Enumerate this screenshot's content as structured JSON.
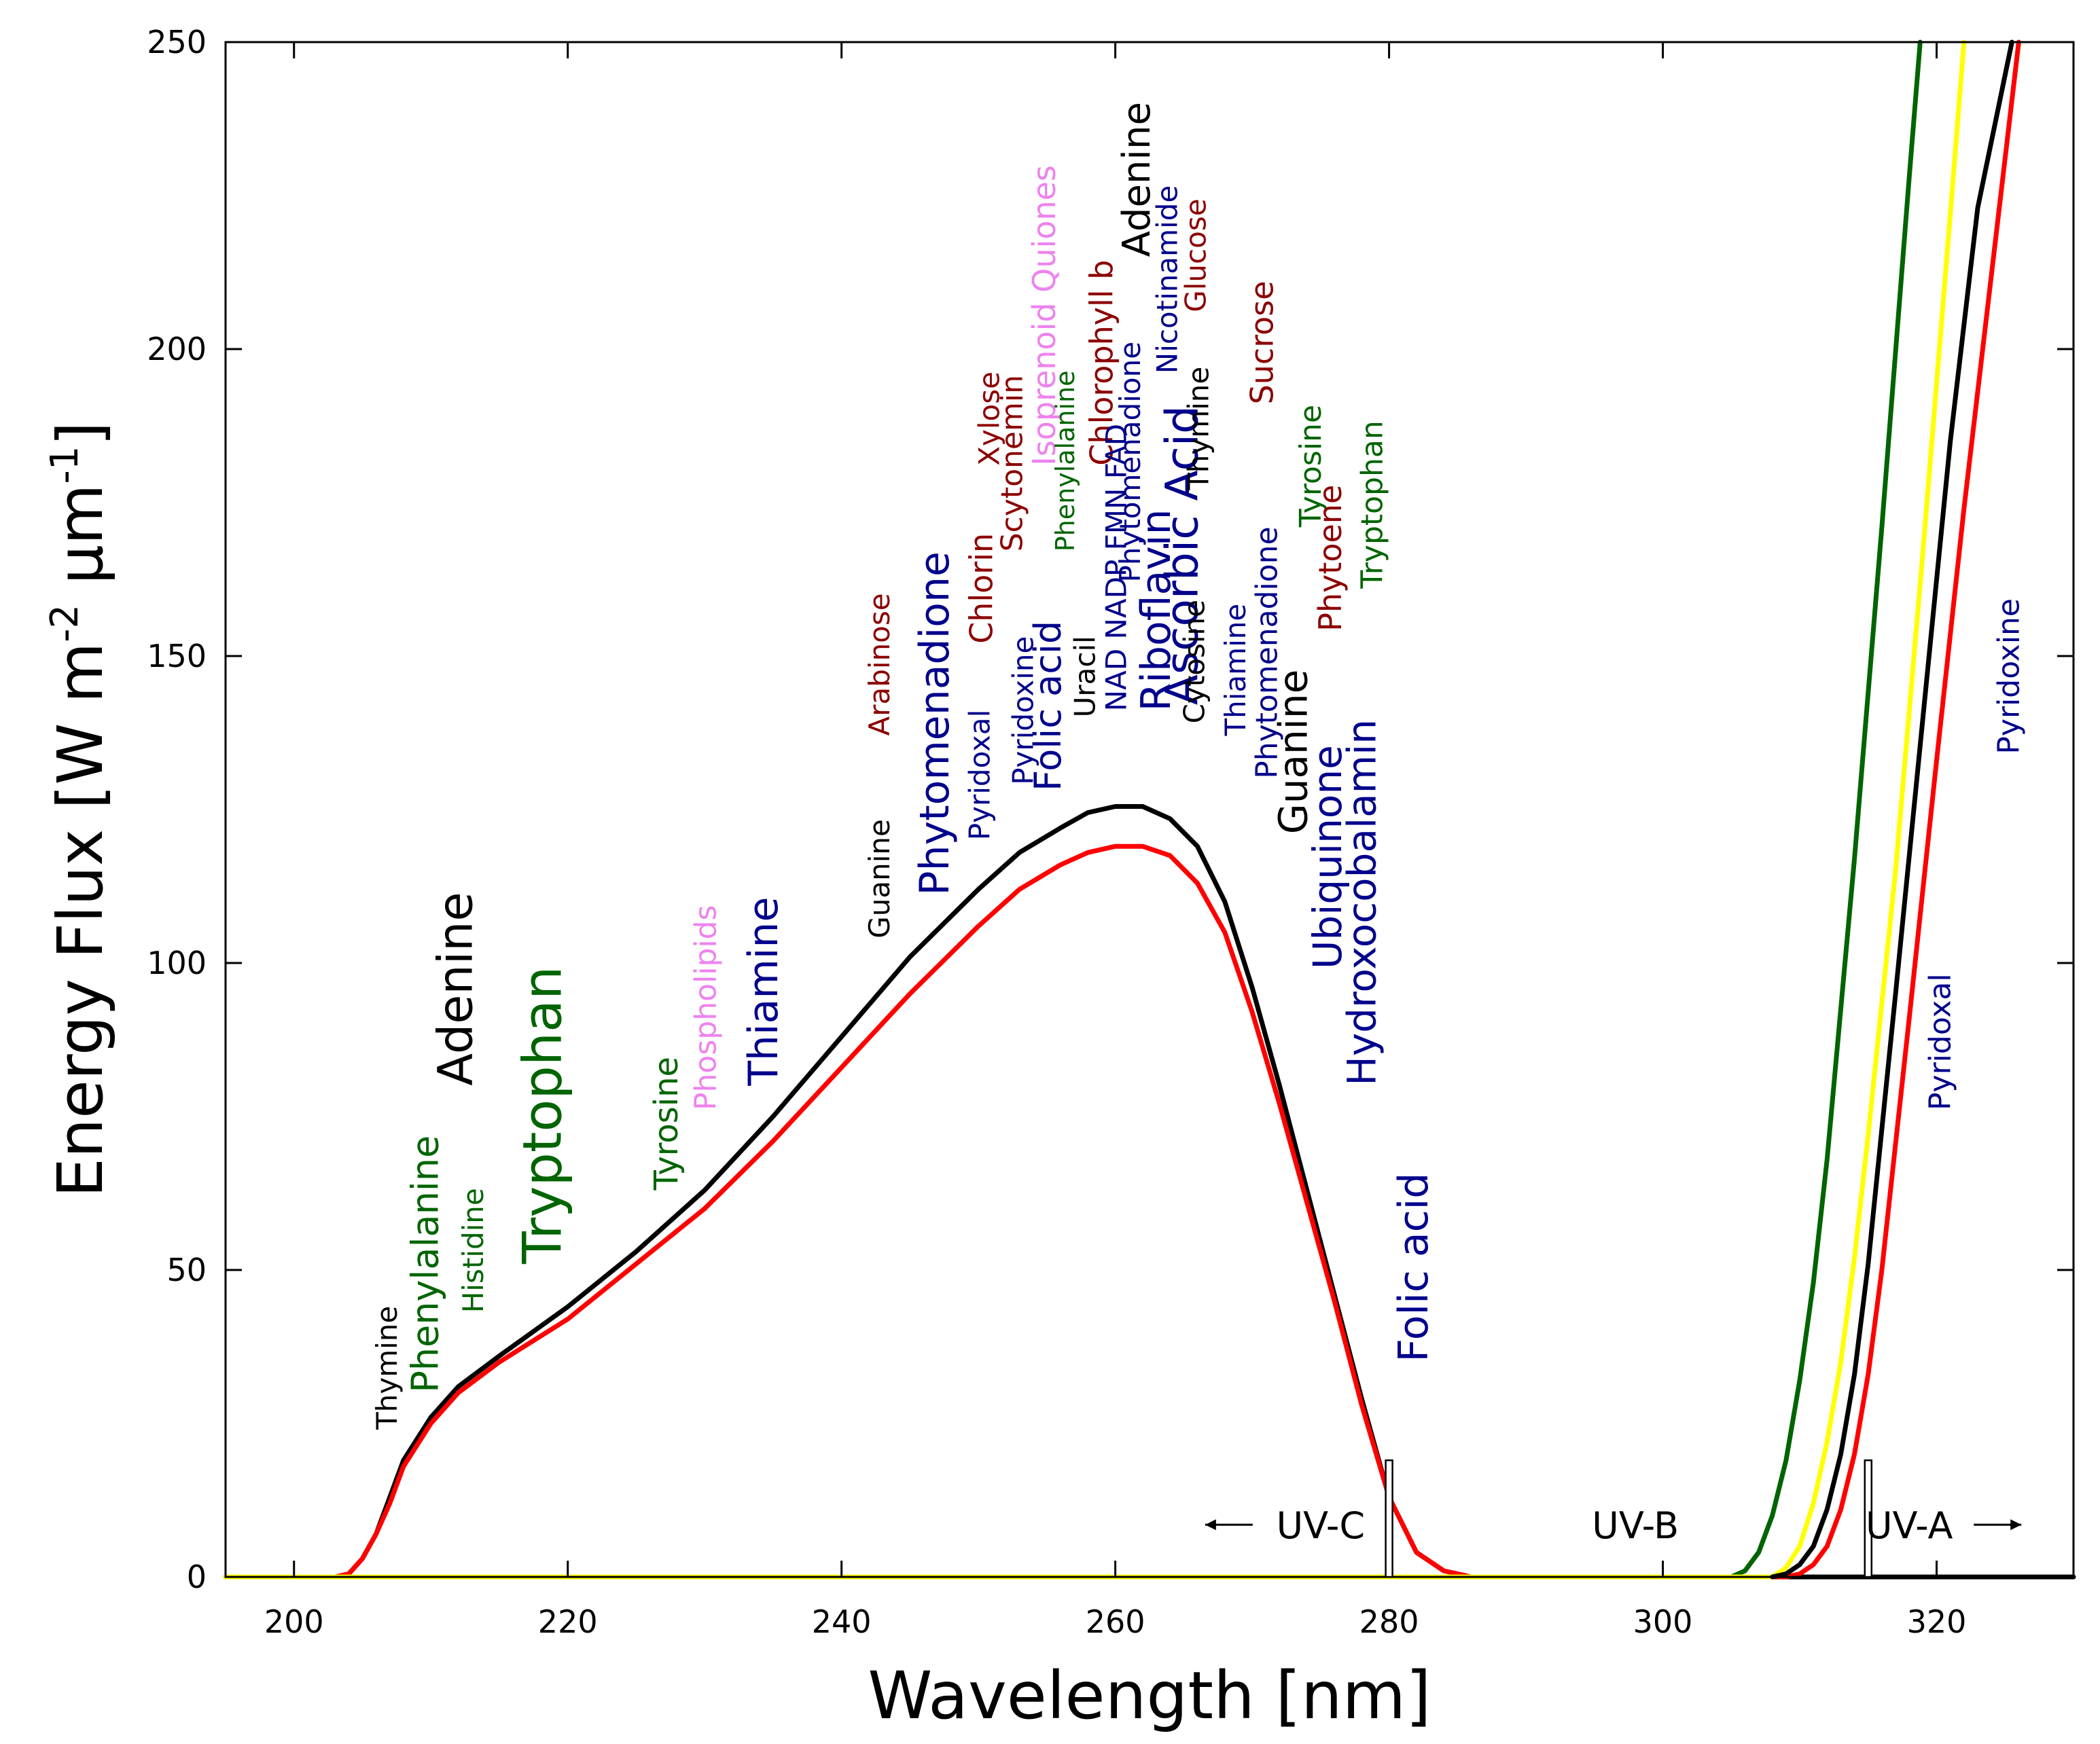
{
  "chart_data": {
    "type": "line",
    "title": "",
    "xlabel": "Wavelength [nm]",
    "ylabel_parts": [
      "Energy Flux [W m",
      "-2",
      " μm",
      "-1",
      "]"
    ],
    "xlim": [
      195,
      330
    ],
    "ylim": [
      0,
      250
    ],
    "x_ticks": [
      200,
      220,
      240,
      260,
      280,
      300,
      320
    ],
    "y_ticks": [
      0,
      50,
      100,
      150,
      200,
      250
    ],
    "grid": false,
    "series": [
      {
        "color": "#000000",
        "points": [
          [
            195,
            0
          ],
          [
            203,
            0
          ],
          [
            204,
            0.5
          ],
          [
            205,
            3
          ],
          [
            206,
            7
          ],
          [
            207,
            13
          ],
          [
            208,
            19
          ],
          [
            210,
            26
          ],
          [
            212,
            31
          ],
          [
            215,
            36
          ],
          [
            220,
            44
          ],
          [
            225,
            53
          ],
          [
            230,
            63
          ],
          [
            235,
            75
          ],
          [
            240,
            88
          ],
          [
            245,
            101
          ],
          [
            250,
            112
          ],
          [
            253,
            118
          ],
          [
            256,
            122
          ],
          [
            258,
            124.5
          ],
          [
            260,
            125.5
          ],
          [
            262,
            125.5
          ],
          [
            264,
            123.5
          ],
          [
            266,
            119
          ],
          [
            268,
            110
          ],
          [
            270,
            96
          ],
          [
            272,
            80
          ],
          [
            274,
            63
          ],
          [
            276,
            46
          ],
          [
            278,
            29
          ],
          [
            280,
            13
          ],
          [
            282,
            4
          ],
          [
            284,
            1
          ],
          [
            286,
            0
          ],
          [
            330,
            0
          ]
        ]
      },
      {
        "color": "#ff0000",
        "points": [
          [
            195,
            0
          ],
          [
            203,
            0
          ],
          [
            204,
            0.5
          ],
          [
            205,
            3
          ],
          [
            206,
            7
          ],
          [
            207,
            12
          ],
          [
            208,
            18
          ],
          [
            210,
            25
          ],
          [
            212,
            30
          ],
          [
            215,
            35
          ],
          [
            220,
            42
          ],
          [
            225,
            51
          ],
          [
            230,
            60
          ],
          [
            235,
            71
          ],
          [
            240,
            83
          ],
          [
            245,
            95
          ],
          [
            250,
            106
          ],
          [
            253,
            112
          ],
          [
            256,
            116
          ],
          [
            258,
            118
          ],
          [
            260,
            119
          ],
          [
            262,
            119
          ],
          [
            264,
            117.5
          ],
          [
            266,
            113
          ],
          [
            268,
            105
          ],
          [
            270,
            92
          ],
          [
            272,
            77
          ],
          [
            274,
            61
          ],
          [
            276,
            45
          ],
          [
            278,
            28
          ],
          [
            280,
            13
          ],
          [
            282,
            4
          ],
          [
            284,
            1
          ],
          [
            286,
            0
          ],
          [
            309,
            0
          ],
          [
            310,
            0.5
          ],
          [
            311,
            2
          ],
          [
            312,
            5
          ],
          [
            313,
            11
          ],
          [
            314,
            20
          ],
          [
            315,
            33
          ],
          [
            316,
            50
          ],
          [
            318,
            91
          ],
          [
            320,
            133
          ],
          [
            322,
            174
          ],
          [
            324,
            212
          ],
          [
            326,
            250
          ]
        ]
      },
      {
        "color": "#006400",
        "points": [
          [
            195,
            0
          ],
          [
            305,
            0
          ],
          [
            306,
            1
          ],
          [
            307,
            4
          ],
          [
            308,
            10
          ],
          [
            309,
            19
          ],
          [
            310,
            32
          ],
          [
            311,
            48
          ],
          [
            312,
            68
          ],
          [
            314,
            117
          ],
          [
            316,
            171
          ],
          [
            318,
            228
          ],
          [
            318.8,
            250
          ]
        ]
      },
      {
        "color": "#ffff00",
        "points": [
          [
            195,
            0
          ],
          [
            308,
            0
          ],
          [
            309,
            1.5
          ],
          [
            310,
            5
          ],
          [
            311,
            12
          ],
          [
            312,
            22
          ],
          [
            313,
            35
          ],
          [
            314,
            52
          ],
          [
            315,
            72
          ],
          [
            317,
            115
          ],
          [
            319,
            167
          ],
          [
            321,
            222
          ],
          [
            322,
            250
          ]
        ]
      },
      {
        "color": "#000000",
        "points": [
          [
            308,
            0
          ],
          [
            309,
            0.5
          ],
          [
            310,
            2
          ],
          [
            311,
            5
          ],
          [
            312,
            11
          ],
          [
            313,
            20
          ],
          [
            314,
            33
          ],
          [
            315,
            51
          ],
          [
            317,
            95
          ],
          [
            319,
            140
          ],
          [
            321,
            185
          ],
          [
            323,
            223
          ],
          [
            325.5,
            250
          ]
        ]
      }
    ],
    "annotations": [
      {
        "text": "Thymine",
        "x": 207.5,
        "y": 24,
        "color": "#000000",
        "size": 42
      },
      {
        "text": "Phenylalanine",
        "x": 210.5,
        "y": 30,
        "color": "#006400",
        "size": 54
      },
      {
        "text": "Adenine",
        "x": 213,
        "y": 80,
        "color": "#000000",
        "size": 70
      },
      {
        "text": "Histidine",
        "x": 213.8,
        "y": 43,
        "color": "#006400",
        "size": 42
      },
      {
        "text": "Tryptophan",
        "x": 219.5,
        "y": 51,
        "color": "#006400",
        "size": 78
      },
      {
        "text": "Tyrosine",
        "x": 228,
        "y": 63,
        "color": "#006400",
        "size": 48
      },
      {
        "text": "Phospholipids",
        "x": 230.8,
        "y": 76,
        "color": "#ee82ee",
        "size": 44
      },
      {
        "text": "Thiamine",
        "x": 235.3,
        "y": 80,
        "color": "#00008b",
        "size": 60
      },
      {
        "text": "Guanine",
        "x": 243.5,
        "y": 104,
        "color": "#000000",
        "size": 42
      },
      {
        "text": "Arabinose",
        "x": 243.5,
        "y": 137,
        "color": "#8b0000",
        "size": 42
      },
      {
        "text": "Phytomenadione",
        "x": 247.8,
        "y": 111,
        "color": "#00008b",
        "size": 60
      },
      {
        "text": "Pyridoxal",
        "x": 250.8,
        "y": 120,
        "color": "#00008b",
        "size": 42
      },
      {
        "text": "Chlorin",
        "x": 251,
        "y": 152,
        "color": "#8b0000",
        "size": 46
      },
      {
        "text": "Xylose",
        "x": 251.5,
        "y": 181,
        "color": "#8b0000",
        "size": 42
      },
      {
        "text": "Scytonemin",
        "x": 253.2,
        "y": 167,
        "color": "#8b0000",
        "size": 44
      },
      {
        "text": "Pyridoxine",
        "x": 254,
        "y": 129,
        "color": "#00008b",
        "size": 42
      },
      {
        "text": "Folic acid",
        "x": 256,
        "y": 128,
        "color": "#00008b",
        "size": 54
      },
      {
        "text": "Isoprenoid Quiones",
        "x": 255.6,
        "y": 181,
        "color": "#ee82ee",
        "size": 46
      },
      {
        "text": "Phenylalanine",
        "x": 257,
        "y": 167,
        "color": "#006400",
        "size": 38
      },
      {
        "text": "Uracil",
        "x": 258.5,
        "y": 140,
        "color": "#000000",
        "size": 42
      },
      {
        "text": "Chlorophyll b",
        "x": 259.8,
        "y": 181,
        "color": "#8b0000",
        "size": 46
      },
      {
        "text": "NAD NADP FMN FAD",
        "x": 260.8,
        "y": 141,
        "color": "#00008b",
        "size": 42
      },
      {
        "text": "Phytomenadione",
        "x": 261.8,
        "y": 162,
        "color": "#00008b",
        "size": 42
      },
      {
        "text": "Adenine",
        "x": 262.5,
        "y": 215,
        "color": "#000000",
        "size": 56
      },
      {
        "text": "Riboflavin",
        "x": 264,
        "y": 141,
        "color": "#00008b",
        "size": 60
      },
      {
        "text": "Nicotinamide",
        "x": 264.5,
        "y": 196,
        "color": "#00008b",
        "size": 42
      },
      {
        "text": "Ascorbic Acid",
        "x": 266,
        "y": 142,
        "color": "#00008b",
        "size": 66
      },
      {
        "text": "Glucose",
        "x": 266.6,
        "y": 206,
        "color": "#8b0000",
        "size": 42
      },
      {
        "text": "Cytosine",
        "x": 266.5,
        "y": 139,
        "color": "#000000",
        "size": 42
      },
      {
        "text": "Thymine",
        "x": 266.8,
        "y": 177,
        "color": "#000000",
        "size": 42
      },
      {
        "text": "Thiamine",
        "x": 269.5,
        "y": 137,
        "color": "#00008b",
        "size": 42
      },
      {
        "text": "Phytomenadione",
        "x": 271.8,
        "y": 130,
        "color": "#00008b",
        "size": 44
      },
      {
        "text": "Sucrose",
        "x": 271.5,
        "y": 191,
        "color": "#8b0000",
        "size": 46
      },
      {
        "text": "Guanine",
        "x": 274,
        "y": 121,
        "color": "#000000",
        "size": 58
      },
      {
        "text": "Tyrosine",
        "x": 275,
        "y": 171,
        "color": "#006400",
        "size": 44
      },
      {
        "text": "Ubiquinone",
        "x": 276.5,
        "y": 99,
        "color": "#00008b",
        "size": 58
      },
      {
        "text": "Phytoene",
        "x": 276.5,
        "y": 154,
        "color": "#8b0000",
        "size": 46
      },
      {
        "text": "Hydroxocobalamin",
        "x": 279,
        "y": 80,
        "color": "#00008b",
        "size": 58
      },
      {
        "text": "Tryptophan",
        "x": 279.5,
        "y": 161,
        "color": "#006400",
        "size": 44
      },
      {
        "text": "Folic acid",
        "x": 282.8,
        "y": 35,
        "color": "#00008b",
        "size": 60
      },
      {
        "text": "Pyridoxal",
        "x": 321,
        "y": 76,
        "color": "#00008b",
        "size": 44
      },
      {
        "text": "Pyridoxine",
        "x": 326,
        "y": 134,
        "color": "#00008b",
        "size": 44
      }
    ],
    "uv_bands": [
      {
        "label": "UV-C",
        "x": 275,
        "direction": "left"
      },
      {
        "label": "UV-B",
        "x": 298,
        "direction": "none"
      },
      {
        "label": "UV-A",
        "x": 318,
        "direction": "right"
      }
    ],
    "uv_boundaries": [
      280,
      315
    ]
  }
}
